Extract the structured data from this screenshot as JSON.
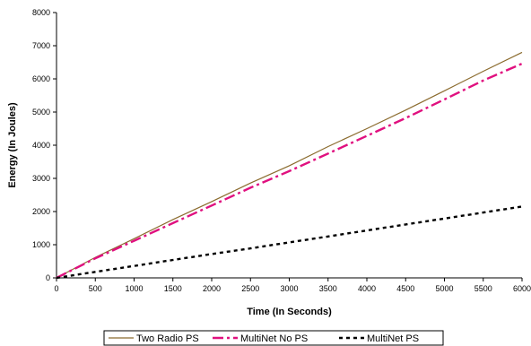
{
  "chart_data": {
    "type": "line",
    "title": "",
    "xlabel": "Time (In Seconds)",
    "ylabel": "Energy (In Joules)",
    "xlim": [
      0,
      6000
    ],
    "ylim": [
      0,
      8000
    ],
    "x_ticks": [
      0,
      500,
      1000,
      1500,
      2000,
      2500,
      3000,
      3500,
      4000,
      4500,
      5000,
      5500,
      6000
    ],
    "y_ticks": [
      0,
      1000,
      2000,
      3000,
      4000,
      5000,
      6000,
      7000,
      8000
    ],
    "x_tick_labels": [
      "0",
      "500",
      "1000",
      "1500",
      "2000",
      "2500",
      "3000",
      "3500",
      "4000",
      "4500",
      "5000",
      "5500",
      "6000"
    ],
    "y_tick_labels": [
      "0",
      "1000",
      "2000",
      "3000",
      "4000",
      "5000",
      "6000",
      "7000",
      "8000"
    ],
    "grid": false,
    "legend_position": "bottom",
    "x": [
      0,
      500,
      1000,
      1500,
      2000,
      2500,
      3000,
      3500,
      4000,
      4500,
      5000,
      5500,
      6000
    ],
    "series": [
      {
        "name": "Two Radio PS",
        "color": "#8B6B2E",
        "style": "solid",
        "values": [
          0,
          620,
          1180,
          1760,
          2300,
          2860,
          3380,
          3960,
          4500,
          5060,
          5640,
          6230,
          6800
        ]
      },
      {
        "name": "MultiNet No PS",
        "color": "#E0107F",
        "style": "dash-dot",
        "values": [
          0,
          590,
          1120,
          1650,
          2180,
          2720,
          3220,
          3750,
          4280,
          4820,
          5380,
          5950,
          6460
        ]
      },
      {
        "name": "MultiNet PS",
        "color": "#000000",
        "style": "dotted",
        "values": [
          0,
          180,
          360,
          540,
          720,
          890,
          1070,
          1250,
          1430,
          1610,
          1790,
          1970,
          2150
        ]
      }
    ]
  }
}
